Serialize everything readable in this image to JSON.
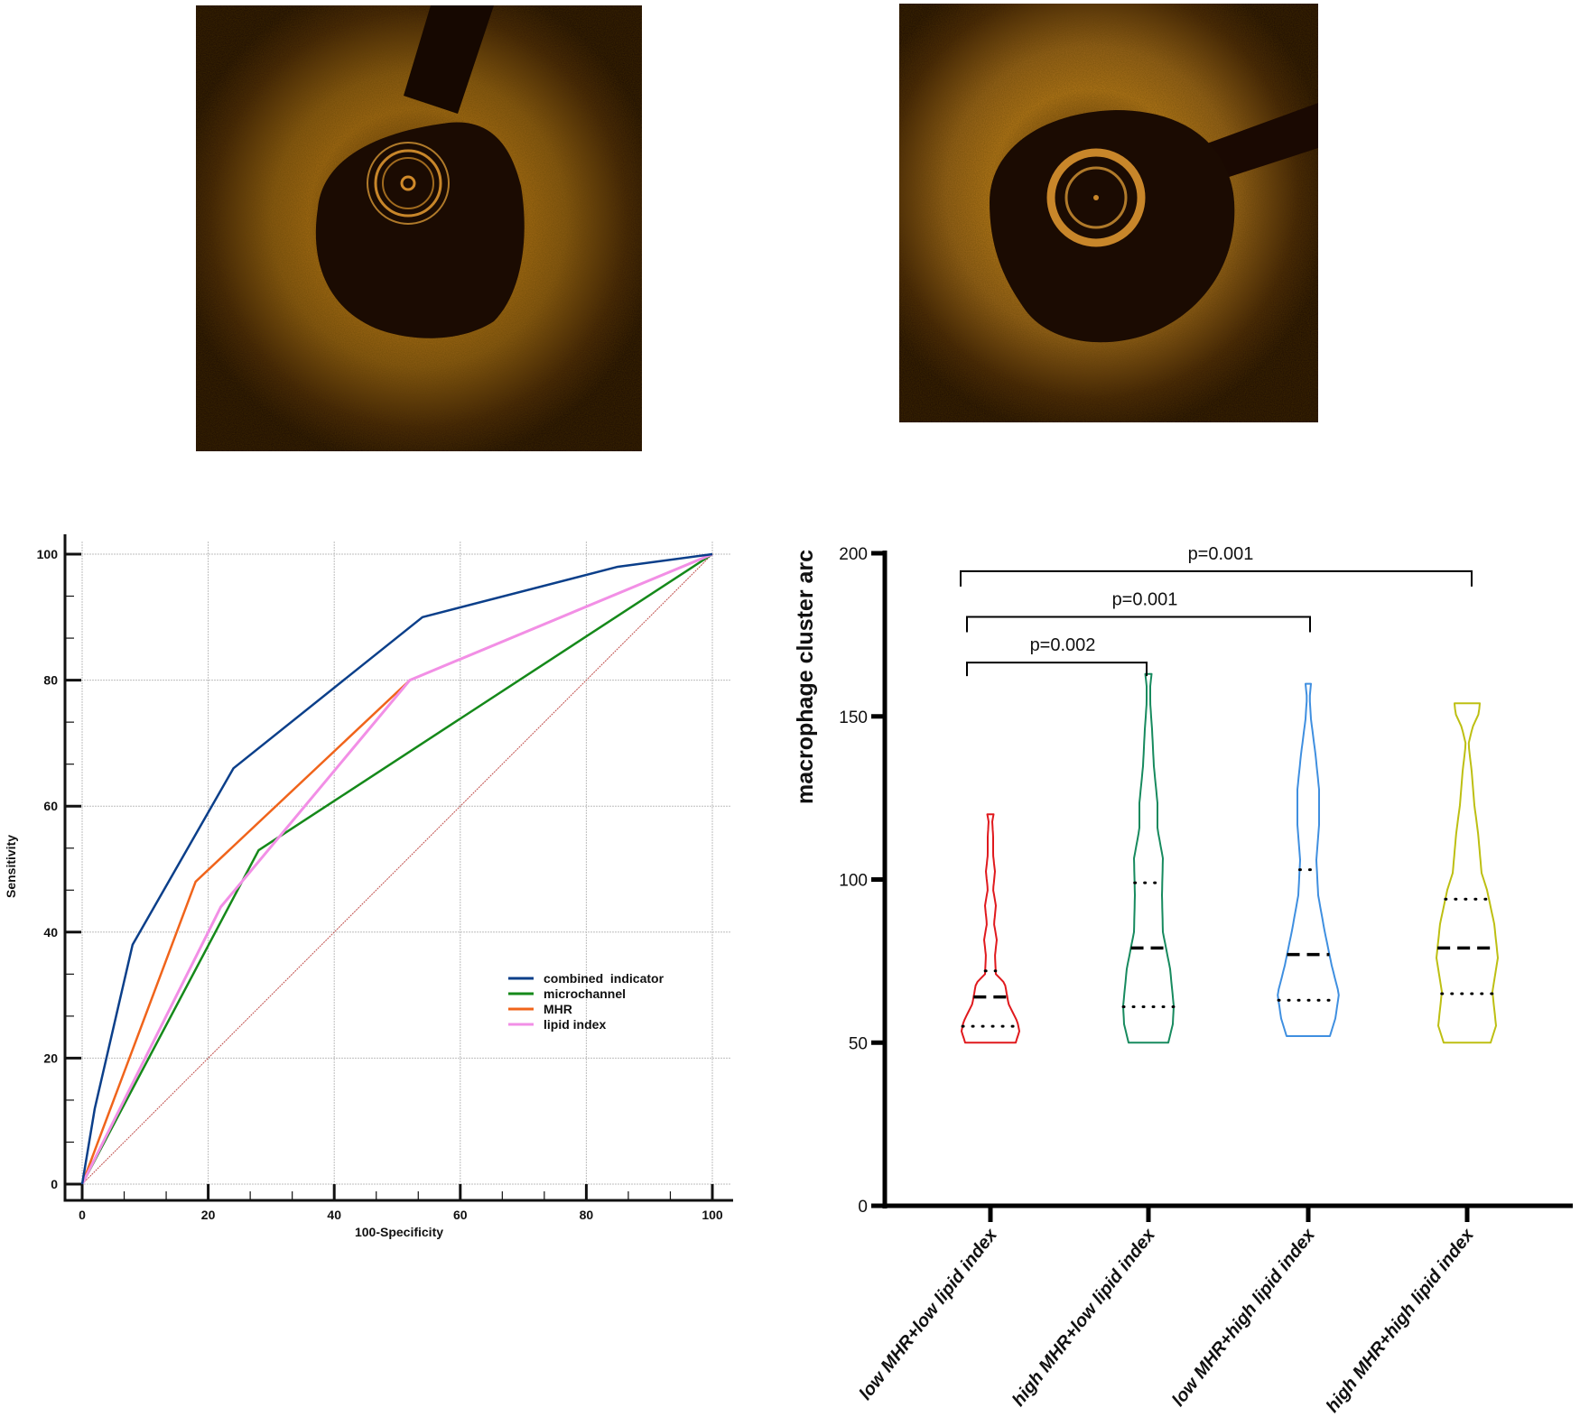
{
  "images": [
    {
      "name": "oct-image-left",
      "label": ""
    },
    {
      "name": "oct-image-right",
      "label": ""
    }
  ],
  "chart_data": [
    {
      "type": "line",
      "title": "",
      "xlabel": "100-Specificity",
      "ylabel": "Sensitivity",
      "xlim": [
        0,
        100
      ],
      "ylim": [
        0,
        100
      ],
      "xticks": [
        "0",
        "20",
        "40",
        "60",
        "80",
        "100"
      ],
      "yticks": [
        "0",
        "20",
        "40",
        "60",
        "80",
        "100"
      ],
      "grid": true,
      "legend_position": "bottom-right",
      "reference_line": {
        "name": "reference",
        "color": "#c0504d",
        "points": [
          [
            0,
            0
          ],
          [
            100,
            100
          ]
        ]
      },
      "series": [
        {
          "name": "combined  indicator",
          "color": "#0b3f8a",
          "points": [
            [
              0,
              0
            ],
            [
              2,
              12
            ],
            [
              8,
              38
            ],
            [
              24,
              66
            ],
            [
              54,
              90
            ],
            [
              85,
              98
            ],
            [
              100,
              100
            ]
          ]
        },
        {
          "name": "microchannel",
          "color": "#15891a",
          "points": [
            [
              0,
              0
            ],
            [
              28,
              53
            ],
            [
              100,
              100
            ]
          ]
        },
        {
          "name": "MHR",
          "color": "#f0641b",
          "points": [
            [
              0,
              0
            ],
            [
              18,
              48
            ],
            [
              52,
              80
            ],
            [
              100,
              100
            ]
          ]
        },
        {
          "name": "lipid index",
          "color": "#f28fe6",
          "points": [
            [
              0,
              0
            ],
            [
              22,
              44
            ],
            [
              52,
              80
            ],
            [
              100,
              100
            ]
          ]
        }
      ]
    },
    {
      "type": "violin",
      "title": "",
      "xlabel": "",
      "ylabel": "macrophage cluster  arc",
      "ylim": [
        0,
        200
      ],
      "yticks": [
        "0",
        "50",
        "100",
        "150",
        "200"
      ],
      "categories": [
        "low MHR+low lipid index",
        "high MHR+low lipid index",
        "low MHR+high lipid index",
        "high MHR+high lipid index"
      ],
      "groups": [
        {
          "name": "low MHR+low lipid index",
          "color": "#e0191d",
          "min": 50,
          "max": 120,
          "q1": 55,
          "median": 64,
          "q3": 72
        },
        {
          "name": "high MHR+low lipid index",
          "color": "#178a5e",
          "min": 50,
          "max": 163,
          "q1": 61,
          "median": 79,
          "q3": 99
        },
        {
          "name": "low MHR+high lipid index",
          "color": "#3f8fe0",
          "min": 52,
          "max": 160,
          "q1": 63,
          "median": 77,
          "q3": 103
        },
        {
          "name": "high MHR+high lipid index",
          "color": "#bdbf12",
          "min": 50,
          "max": 154,
          "q1": 65,
          "median": 79,
          "q3": 94
        }
      ],
      "comparisons": [
        {
          "from": 0,
          "to": 1,
          "label": "p=0.002",
          "level": 1
        },
        {
          "from": 0,
          "to": 2,
          "label": "p=0.001",
          "level": 2
        },
        {
          "from": 0,
          "to": 3,
          "label": "p=0.001",
          "level": 3
        }
      ]
    }
  ]
}
